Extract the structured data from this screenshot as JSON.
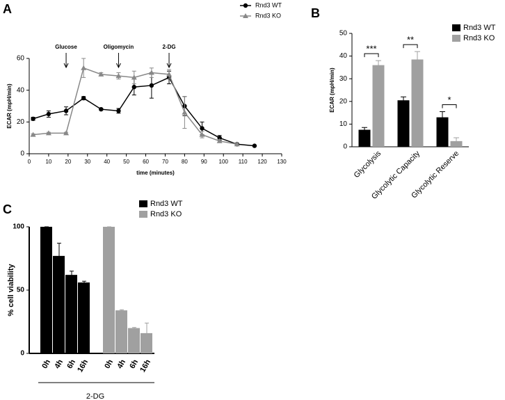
{
  "chart_data": [
    {
      "type": "line",
      "panel": "A",
      "xlabel": "time (minutes)",
      "ylabel": "ECAR (mpH/min)",
      "x": [
        2,
        10,
        19,
        28,
        37,
        46,
        54,
        63,
        72,
        80,
        89,
        98,
        107,
        116
      ],
      "xlim": [
        0,
        130
      ],
      "xticks": [
        0,
        10,
        20,
        30,
        40,
        50,
        60,
        70,
        80,
        90,
        100,
        110,
        120,
        130
      ],
      "ylim": [
        0,
        60
      ],
      "yticks": [
        0,
        20,
        40,
        60
      ],
      "series": [
        {
          "name": "Rnd3 WT",
          "color": "#000000",
          "marker": "circle",
          "values": [
            22,
            25,
            27,
            35,
            28,
            27,
            42,
            43,
            48,
            30,
            16,
            10,
            6,
            5
          ],
          "errors": [
            1,
            2,
            2.5,
            1,
            0.5,
            1.5,
            5,
            8,
            4,
            6,
            4,
            1.5,
            0.5,
            0.3
          ]
        },
        {
          "name": "Rnd3 KO",
          "color": "#888888",
          "marker": "triangle",
          "values": [
            12,
            13,
            13,
            54,
            50,
            49,
            48,
            51,
            50,
            26,
            12,
            8,
            6,
            null
          ],
          "errors": [
            0.5,
            0.5,
            0.5,
            6,
            1,
            2,
            4,
            3,
            3,
            10,
            2,
            1,
            0.5,
            null
          ]
        }
      ],
      "annotations": [
        {
          "text": "Glucose",
          "x": 19
        },
        {
          "text": "Oligomycin",
          "x": 46
        },
        {
          "text": "2-DG",
          "x": 72
        }
      ]
    },
    {
      "type": "bar",
      "panel": "B",
      "ylabel": "ECAR (mpH/min)",
      "categories": [
        "Glycolysis",
        "Glycolytic Capacity",
        "Glycolytic Reserve"
      ],
      "ylim": [
        0,
        50
      ],
      "yticks": [
        0,
        10,
        20,
        30,
        40,
        50
      ],
      "series": [
        {
          "name": "Rnd3 WT",
          "color": "#000000",
          "values": [
            7.5,
            20.5,
            13
          ],
          "errors": [
            1,
            1.5,
            2.5
          ]
        },
        {
          "name": "Rnd3 KO",
          "color": "#a0a0a0",
          "values": [
            36,
            38.5,
            2.5
          ],
          "errors": [
            2,
            3.5,
            1.5
          ]
        }
      ],
      "significance": [
        "***",
        "**",
        "*"
      ]
    },
    {
      "type": "bar",
      "panel": "C",
      "ylabel": "% cell viability",
      "xlabel": "2-DG",
      "categories": [
        "0h",
        "4h",
        "6h",
        "16h"
      ],
      "ylim": [
        0,
        100
      ],
      "yticks": [
        0,
        50,
        100
      ],
      "series": [
        {
          "name": "Rnd3 WT",
          "color": "#000000",
          "values": [
            100,
            77,
            62,
            56
          ],
          "errors": [
            0,
            10,
            3,
            1
          ]
        },
        {
          "name": "Rnd3 KO",
          "color": "#a0a0a0",
          "values": [
            100,
            34,
            20,
            16
          ],
          "errors": [
            0,
            0.5,
            0.5,
            8
          ]
        }
      ]
    }
  ]
}
